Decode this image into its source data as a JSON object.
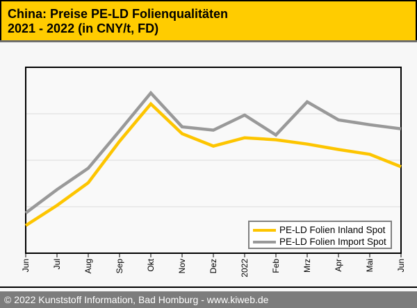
{
  "header": {
    "title_line1": "China: Preise PE-LD Folienqualitäten",
    "title_line2": "2021 - 2022 (in CNY/t, FD)",
    "bg_color": "#FFCC00"
  },
  "chart_data": {
    "type": "line",
    "title": "China: Preise PE-LD Folienqualitäten 2021 - 2022 (in CNY/t, FD)",
    "categories": [
      "Jun",
      "Jul",
      "Aug",
      "Sep",
      "Okt",
      "Nov",
      "Dez",
      "2022",
      "Feb",
      "Mrz",
      "Apr",
      "Mai",
      "Jun"
    ],
    "series": [
      {
        "name": "PE-LD Folien Inland Spot",
        "color": "#FDC500",
        "values": [
          14.9,
          25.7,
          37.9,
          60.2,
          80.3,
          64.3,
          57.6,
          62.1,
          61.0,
          58.7,
          55.8,
          53.2,
          46.5
        ]
      },
      {
        "name": "PE-LD Folien Import Spot",
        "color": "#999999",
        "values": [
          21.6,
          34.2,
          45.7,
          65.8,
          86.2,
          68.0,
          66.2,
          74.3,
          63.6,
          81.4,
          71.7,
          69.1,
          66.9
        ]
      }
    ],
    "xlabel": "",
    "ylabel": "",
    "y_unit": "relative scale 0-100 (y-axis has no visible tick labels; prices in CNY/t)",
    "ylim": [
      0,
      100
    ],
    "gridlines_y": [
      25,
      50,
      75
    ],
    "grid": "horizontal only",
    "legend_position": "bottom-right inside plot",
    "plot_bg": "#f9f9f9",
    "grid_color": "#dcdcdc",
    "border_color": "#000000"
  },
  "footer": {
    "text": "© 2022 Kunststoff Information, Bad Homburg - www.kiweb.de"
  }
}
